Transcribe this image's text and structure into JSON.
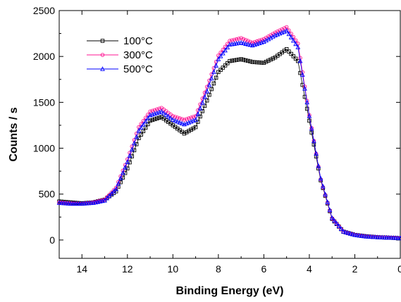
{
  "chart_data": {
    "type": "scatter",
    "xlabel": "Binding Energy (eV)",
    "ylabel": "Counts / s",
    "xlim": [
      15,
      0
    ],
    "ylim": [
      -200,
      2500
    ],
    "x_reversed": true,
    "xticks": [
      14,
      12,
      10,
      8,
      6,
      4,
      2,
      0
    ],
    "yticks": [
      0,
      500,
      1000,
      1500,
      2000,
      2500
    ],
    "legend_position": "top-left",
    "x": [
      15.0,
      14.5,
      14.0,
      13.5,
      13.0,
      12.5,
      12.0,
      11.5,
      11.0,
      10.5,
      10.0,
      9.5,
      9.0,
      8.5,
      8.0,
      7.5,
      7.0,
      6.5,
      6.0,
      5.5,
      5.0,
      4.5,
      4.0,
      3.5,
      3.0,
      2.5,
      2.0,
      1.5,
      1.0,
      0.5,
      0.0
    ],
    "series": [
      {
        "name": "100°C",
        "marker": "square",
        "color": "#000000",
        "values": [
          420,
          410,
          400,
          410,
          440,
          530,
          780,
          1110,
          1300,
          1340,
          1250,
          1160,
          1230,
          1520,
          1830,
          1950,
          1970,
          1940,
          1930,
          1990,
          2080,
          1950,
          1300,
          650,
          230,
          90,
          55,
          40,
          30,
          25,
          20
        ]
      },
      {
        "name": "300°C",
        "marker": "circle",
        "color": "#ff1493",
        "values": [
          410,
          400,
          395,
          410,
          440,
          570,
          880,
          1230,
          1400,
          1440,
          1350,
          1310,
          1350,
          1670,
          2010,
          2170,
          2200,
          2150,
          2190,
          2260,
          2320,
          2140,
          1360,
          660,
          235,
          90,
          55,
          38,
          30,
          25,
          20
        ]
      },
      {
        "name": "500°C",
        "marker": "triangle",
        "color": "#0000ff",
        "values": [
          405,
          395,
          395,
          405,
          430,
          555,
          850,
          1190,
          1360,
          1400,
          1310,
          1260,
          1310,
          1620,
          1970,
          2130,
          2150,
          2120,
          2160,
          2230,
          2280,
          2100,
          1350,
          670,
          240,
          92,
          55,
          38,
          30,
          25,
          20
        ]
      }
    ]
  }
}
